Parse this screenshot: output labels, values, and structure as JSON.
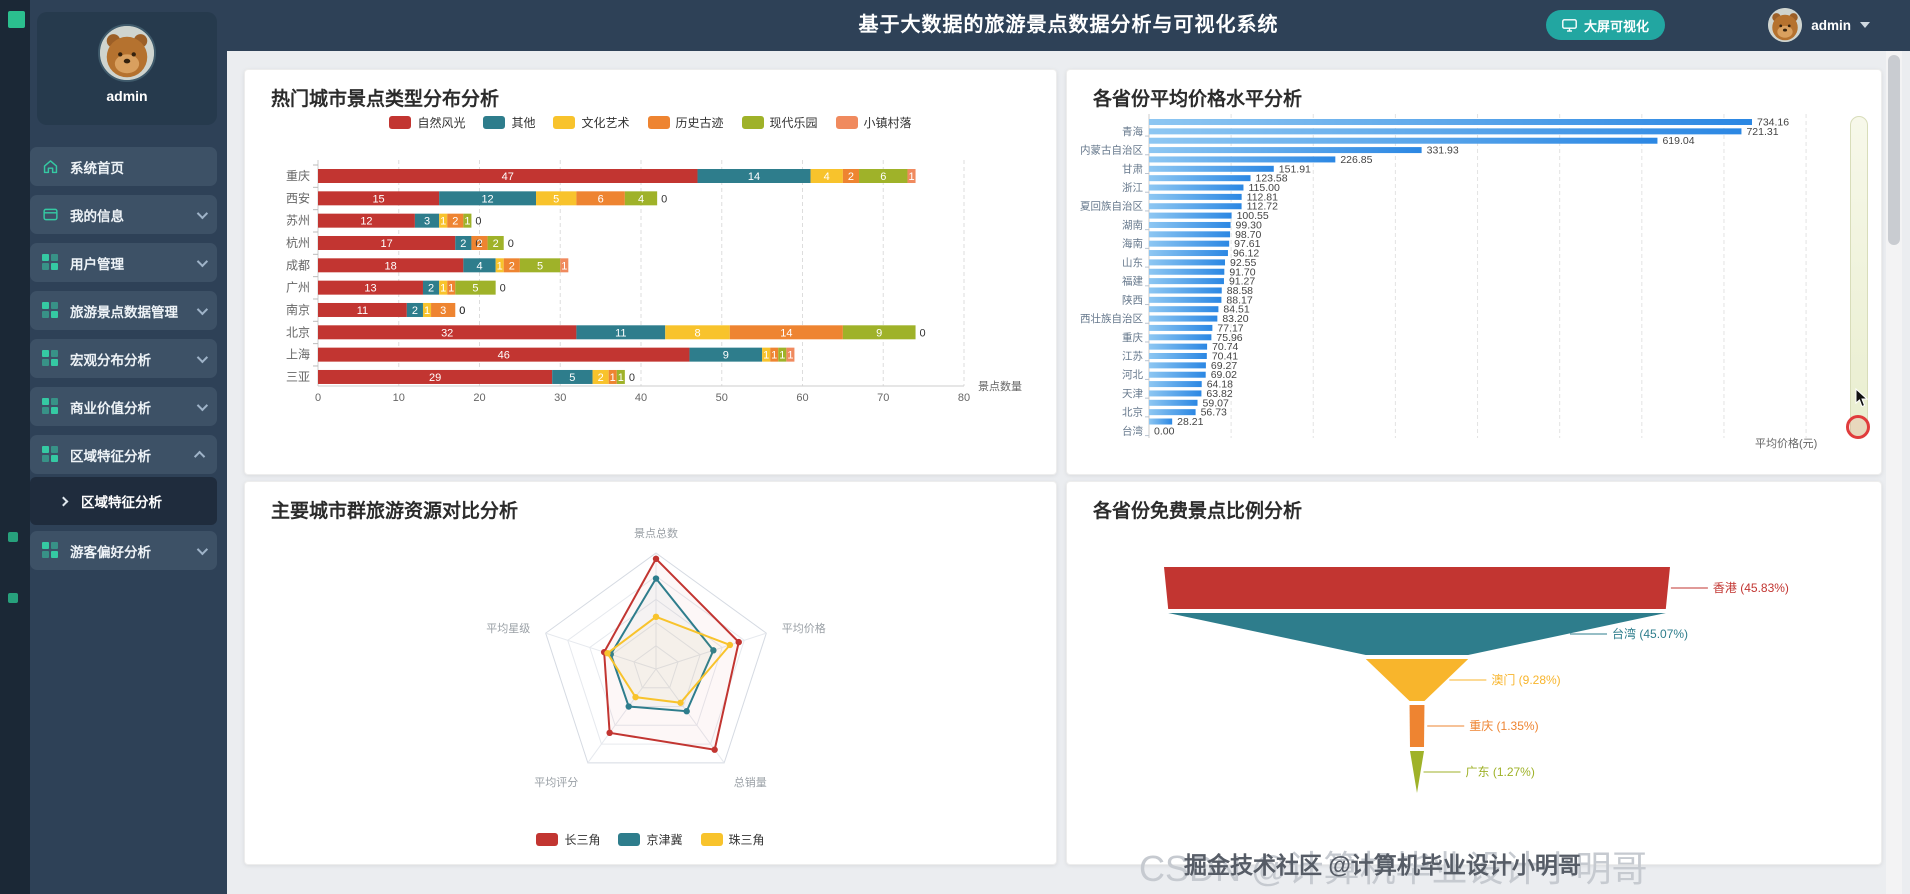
{
  "app": {
    "title": "基于大数据的旅游景点数据分析与可视化系统",
    "header_button": "大屏可视化",
    "user": "admin",
    "watermark_back": "CSDN @计算机毕业设计小明哥",
    "watermark_front": "掘金技术社区 @计算机毕业设计小明哥"
  },
  "sidebar": {
    "profile_name": "admin",
    "items": [
      {
        "label": "系统首页",
        "icon": "home-icon",
        "chevron": "none"
      },
      {
        "label": "我的信息",
        "icon": "card-icon",
        "chevron": "down"
      },
      {
        "label": "用户管理",
        "icon": "grid-icon",
        "chevron": "down"
      },
      {
        "label": "旅游景点数据管理",
        "icon": "grid-icon",
        "chevron": "down"
      },
      {
        "label": "宏观分布分析",
        "icon": "grid-icon",
        "chevron": "down"
      },
      {
        "label": "商业价值分析",
        "icon": "grid-icon",
        "chevron": "down"
      },
      {
        "label": "区域特征分析",
        "icon": "grid-icon",
        "chevron": "up"
      },
      {
        "label": "游客偏好分析",
        "icon": "grid-icon",
        "chevron": "down"
      }
    ],
    "submenu": {
      "label": "区域特征分析"
    }
  },
  "chart_data": [
    {
      "type": "bar",
      "variant": "stacked-horizontal",
      "title": "热门城市景点类型分布分析",
      "xlabel": "景点数量",
      "xlim": [
        0,
        80
      ],
      "xticks": [
        0,
        10,
        20,
        30,
        40,
        50,
        60,
        70,
        80
      ],
      "categories": [
        "重庆",
        "西安",
        "苏州",
        "杭州",
        "成都",
        "广州",
        "南京",
        "北京",
        "上海",
        "三亚"
      ],
      "series": [
        {
          "name": "自然风光",
          "color": "#c23531",
          "values": [
            47,
            15,
            12,
            17,
            18,
            13,
            11,
            32,
            46,
            29
          ]
        },
        {
          "name": "其他",
          "color": "#2e7d8c",
          "values": [
            14,
            12,
            3,
            2,
            4,
            2,
            2,
            11,
            9,
            5
          ]
        },
        {
          "name": "文化艺术",
          "color": "#f8c32c",
          "values": [
            4,
            5,
            1,
            0,
            1,
            1,
            1,
            8,
            1,
            2
          ]
        },
        {
          "name": "历史古迹",
          "color": "#ee8431",
          "values": [
            2,
            6,
            2,
            2,
            2,
            1,
            3,
            14,
            1,
            1
          ]
        },
        {
          "name": "现代乐园",
          "color": "#9fb229",
          "values": [
            6,
            4,
            1,
            2,
            5,
            5,
            0,
            9,
            1,
            1
          ]
        },
        {
          "name": "小镇村落",
          "color": "#f08a5e",
          "values": [
            1,
            0,
            0,
            0,
            1,
            0,
            0,
            0,
            1,
            0
          ]
        }
      ],
      "legend_position": "top"
    },
    {
      "type": "bar",
      "variant": "horizontal",
      "title": "各省份平均价格水平分析",
      "xlabel": "平均价格(元)",
      "xlim": [
        0,
        800
      ],
      "bar_gradient": [
        "#8ec7f2",
        "#2b87e3"
      ],
      "bars": [
        {
          "label": "",
          "value": 734.16
        },
        {
          "label": "青海",
          "value": 721.31
        },
        {
          "label": "",
          "value": 619.04
        },
        {
          "label": "内蒙古自治区",
          "value": 331.93
        },
        {
          "label": "",
          "value": 226.85
        },
        {
          "label": "甘肃",
          "value": 151.91
        },
        {
          "label": "",
          "value": 123.58
        },
        {
          "label": "浙江",
          "value": 115.0
        },
        {
          "label": "",
          "value": 112.81
        },
        {
          "label": "夏回族自治区",
          "value": 112.72
        },
        {
          "label": "",
          "value": 100.55
        },
        {
          "label": "湖南",
          "value": 99.3
        },
        {
          "label": "",
          "value": 98.7
        },
        {
          "label": "海南",
          "value": 97.61
        },
        {
          "label": "",
          "value": 96.12
        },
        {
          "label": "山东",
          "value": 92.55
        },
        {
          "label": "",
          "value": 91.7
        },
        {
          "label": "福建",
          "value": 91.27
        },
        {
          "label": "",
          "value": 88.58
        },
        {
          "label": "陕西",
          "value": 88.17
        },
        {
          "label": "",
          "value": 84.51
        },
        {
          "label": "西壮族自治区",
          "value": 83.2
        },
        {
          "label": "",
          "value": 77.17
        },
        {
          "label": "重庆",
          "value": 75.96
        },
        {
          "label": "",
          "value": 70.74
        },
        {
          "label": "江苏",
          "value": 70.41
        },
        {
          "label": "",
          "value": 69.27
        },
        {
          "label": "河北",
          "value": 69.02
        },
        {
          "label": "",
          "value": 64.18
        },
        {
          "label": "天津",
          "value": 63.82
        },
        {
          "label": "",
          "value": 59.07
        },
        {
          "label": "北京",
          "value": 56.73
        },
        {
          "label": "",
          "value": 28.21
        },
        {
          "label": "台湾",
          "value": 0.0
        }
      ]
    },
    {
      "type": "radar",
      "title": "主要城市群旅游资源对比分析",
      "axes": [
        "景点总数",
        "平均价格",
        "总销量",
        "平均评分",
        "平均星级"
      ],
      "max": 100,
      "series": [
        {
          "name": "长三角",
          "color": "#c23531",
          "values": [
            95,
            75,
            86,
            68,
            47
          ]
        },
        {
          "name": "京津冀",
          "color": "#2e7d8c",
          "values": [
            78,
            52,
            45,
            40,
            41
          ]
        },
        {
          "name": "珠三角",
          "color": "#f8c32c",
          "values": [
            45,
            67,
            36,
            30,
            44
          ]
        }
      ],
      "legend_position": "bottom"
    },
    {
      "type": "funnel",
      "title": "各省份免费景点比例分析",
      "slices": [
        {
          "label": "香港",
          "pct": 45.83,
          "color": "#c23531"
        },
        {
          "label": "台湾",
          "pct": 45.07,
          "color": "#2e7d8c"
        },
        {
          "label": "澳门",
          "pct": 9.28,
          "color": "#f8b52c"
        },
        {
          "label": "重庆",
          "pct": 1.35,
          "color": "#ee8431"
        },
        {
          "label": "广东",
          "pct": 1.27,
          "color": "#9fb229"
        }
      ]
    }
  ]
}
